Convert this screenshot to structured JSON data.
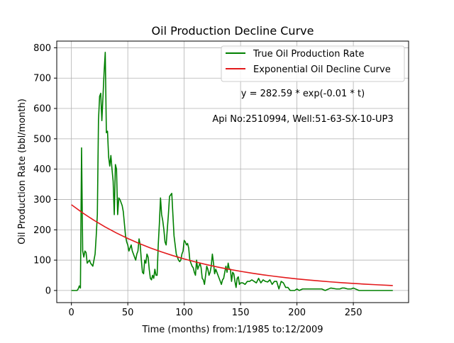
{
  "chart_data": {
    "type": "line",
    "title": "Oil Production Decline Curve",
    "xlabel": "Time (months) from:1/1985 to:12/2009",
    "ylabel": "Oil Production Rate (bbl/month)",
    "xlim": [
      -13,
      299
    ],
    "ylim": [
      -40,
      822
    ],
    "xticks": [
      0,
      50,
      100,
      150,
      200,
      250
    ],
    "yticks": [
      0,
      100,
      200,
      300,
      400,
      500,
      600,
      700,
      800
    ],
    "grid": true,
    "legend_position": "top-right",
    "annotations": [
      "y = 282.59 * exp(-0.01 * t)",
      "Api No:2510994, Well:51-63-SX-10-UP3"
    ],
    "series": [
      {
        "name": "True Oil Production Rate",
        "color": "#008000",
        "x": [
          0,
          1,
          2,
          3,
          4,
          5,
          6,
          7,
          8,
          9,
          10,
          11,
          12,
          13,
          14,
          15,
          16,
          17,
          18,
          19,
          20,
          21,
          22,
          23,
          24,
          25,
          26,
          27,
          28,
          29,
          30,
          31,
          32,
          33,
          34,
          35,
          36,
          37,
          38,
          39,
          40,
          41,
          42,
          43,
          44,
          45,
          46,
          47,
          48,
          49,
          50,
          51,
          52,
          53,
          54,
          55,
          56,
          57,
          58,
          59,
          60,
          61,
          62,
          63,
          64,
          65,
          66,
          67,
          68,
          69,
          70,
          71,
          72,
          73,
          74,
          75,
          76,
          77,
          78,
          79,
          80,
          81,
          82,
          83,
          84,
          85,
          86,
          87,
          88,
          89,
          90,
          91,
          92,
          93,
          94,
          95,
          96,
          97,
          98,
          99,
          100,
          101,
          102,
          103,
          104,
          105,
          106,
          107,
          108,
          109,
          110,
          111,
          112,
          113,
          114,
          115,
          116,
          117,
          118,
          119,
          120,
          121,
          122,
          123,
          124,
          125,
          126,
          127,
          128,
          129,
          130,
          131,
          132,
          133,
          134,
          135,
          136,
          137,
          138,
          139,
          140,
          141,
          142,
          143,
          144,
          145,
          146,
          147,
          148,
          149,
          150,
          152,
          154,
          156,
          158,
          160,
          162,
          164,
          166,
          168,
          170,
          172,
          174,
          176,
          178,
          180,
          182,
          184,
          186,
          188,
          190,
          192,
          194,
          196,
          198,
          200,
          202,
          205,
          210,
          215,
          220,
          222,
          225,
          230,
          235,
          238,
          240,
          242,
          245,
          248,
          250,
          255,
          260,
          270,
          280,
          285
        ],
        "values": [
          0,
          0,
          0,
          0,
          0,
          0,
          5,
          15,
          8,
          470,
          130,
          110,
          130,
          125,
          90,
          95,
          100,
          90,
          85,
          80,
          100,
          120,
          180,
          250,
          560,
          640,
          650,
          560,
          640,
          720,
          785,
          520,
          525,
          440,
          410,
          445,
          400,
          360,
          250,
          415,
          400,
          250,
          305,
          300,
          290,
          280,
          260,
          220,
          180,
          160,
          150,
          130,
          140,
          150,
          130,
          120,
          110,
          100,
          120,
          130,
          170,
          150,
          100,
          60,
          55,
          100,
          90,
          120,
          110,
          70,
          40,
          35,
          50,
          40,
          70,
          50,
          50,
          150,
          220,
          305,
          250,
          230,
          200,
          160,
          150,
          200,
          250,
          310,
          315,
          320,
          250,
          180,
          150,
          120,
          110,
          100,
          95,
          100,
          120,
          130,
          165,
          160,
          150,
          155,
          140,
          100,
          90,
          80,
          75,
          60,
          50,
          100,
          70,
          80,
          90,
          75,
          40,
          35,
          20,
          50,
          80,
          70,
          50,
          60,
          80,
          120,
          90,
          55,
          70,
          60,
          50,
          40,
          30,
          20,
          35,
          40,
          60,
          80,
          60,
          90,
          70,
          70,
          30,
          60,
          55,
          30,
          10,
          40,
          45,
          20,
          25,
          25,
          20,
          30,
          30,
          35,
          30,
          25,
          40,
          25,
          35,
          30,
          28,
          35,
          20,
          30,
          30,
          5,
          30,
          25,
          10,
          10,
          0,
          0,
          0,
          5,
          0,
          5,
          5,
          5,
          5,
          5,
          0,
          8,
          5,
          5,
          8,
          8,
          5,
          5,
          8,
          0,
          0,
          0,
          0,
          0
        ]
      },
      {
        "name": "Exponential Oil Decline Curve",
        "color": "#e31a1c",
        "equation": "y = 282.59 * exp(-0.01 * t)",
        "x": [
          0,
          10,
          20,
          30,
          40,
          50,
          60,
          70,
          80,
          90,
          100,
          110,
          120,
          130,
          140,
          150,
          160,
          170,
          180,
          190,
          200,
          210,
          220,
          230,
          240,
          250,
          260,
          270,
          285
        ],
        "values": [
          282.59,
          255.7,
          231.4,
          209.3,
          189.4,
          171.4,
          155.1,
          140.3,
          127.0,
          114.9,
          104.0,
          94.1,
          85.1,
          77.0,
          69.7,
          63.1,
          57.1,
          51.6,
          46.7,
          42.3,
          38.2,
          34.6,
          31.3,
          28.3,
          25.6,
          23.2,
          21.0,
          19.0,
          16.3
        ]
      }
    ]
  }
}
